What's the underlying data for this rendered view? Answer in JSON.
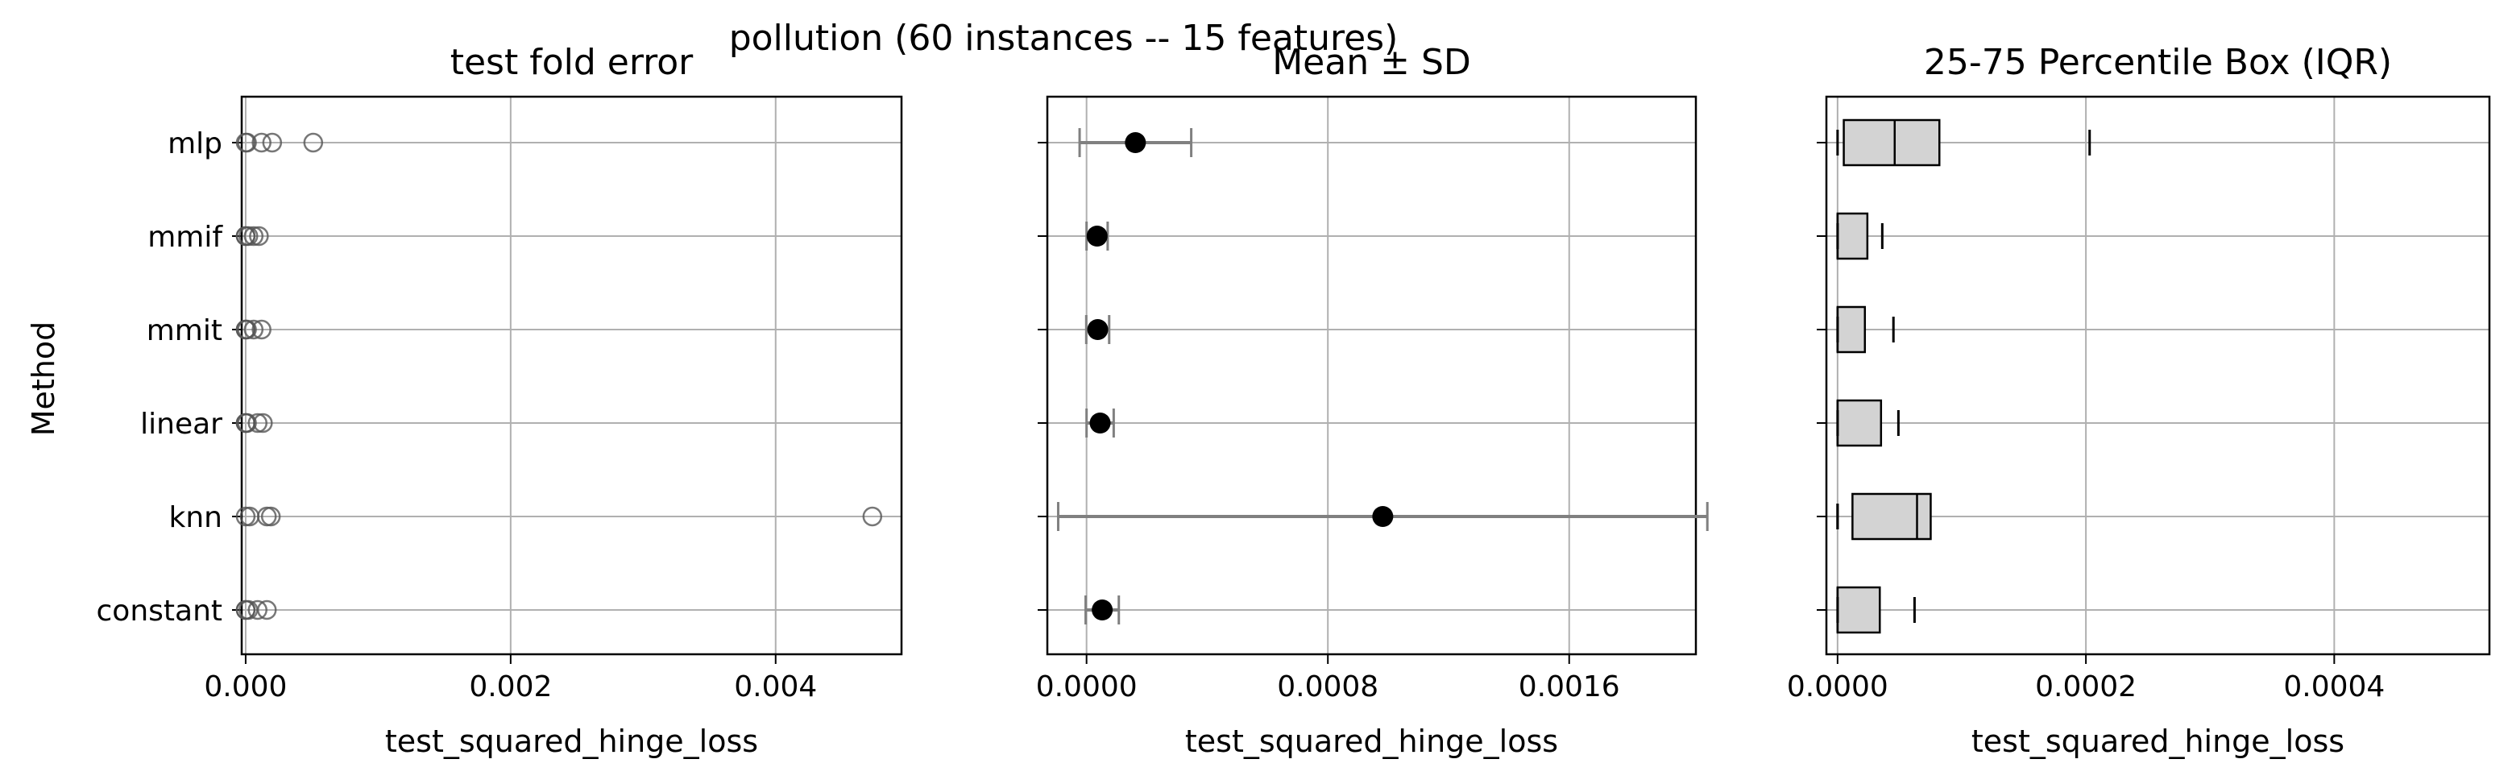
{
  "figure": {
    "suptitle": "pollution (60 instances -- 15 features)",
    "methods": [
      "mlp",
      "mmif",
      "mmit",
      "linear",
      "knn",
      "constant"
    ],
    "ylabel": "Method"
  },
  "chart_data": [
    {
      "type": "scatter",
      "title": "test fold error",
      "xlabel": "test_squared_hinge_loss",
      "ylabel": "Method",
      "xlim": [
        -3e-05,
        0.00495
      ],
      "xticks": [
        0.0,
        0.002,
        0.004
      ],
      "xtick_labels": [
        "0.000",
        "0.002",
        "0.004"
      ],
      "grid": true,
      "marker": "open circle",
      "categories": [
        "mlp",
        "mmif",
        "mmit",
        "linear",
        "knn",
        "constant"
      ],
      "points": {
        "mlp": [
          0.0,
          1e-05,
          0.00012,
          0.0002,
          0.00051
        ],
        "mmif": [
          0.0,
          0.0,
          2e-05,
          6e-05,
          0.0001
        ],
        "mmit": [
          0.0,
          0.0,
          1e-05,
          6e-05,
          0.00012
        ],
        "linear": [
          0.0,
          0.0,
          1e-05,
          9e-05,
          0.00013
        ],
        "knn": [
          0.0,
          3e-05,
          0.00016,
          0.00019,
          0.00473
        ],
        "constant": [
          0.0,
          0.0,
          2e-05,
          9e-05,
          0.00016
        ]
      }
    },
    {
      "type": "errorbar",
      "title": "Mean ± SD",
      "xlabel": "test_squared_hinge_loss",
      "xlim": [
        -0.00013,
        0.00202
      ],
      "xticks": [
        0.0,
        0.0008,
        0.0016
      ],
      "xtick_labels": [
        "0.0000",
        "0.0008",
        "0.0016"
      ],
      "grid": true,
      "categories": [
        "mlp",
        "mmif",
        "mmit",
        "linear",
        "knn",
        "constant"
      ],
      "mean": [
        0.000162,
        3.5e-05,
        3.7e-05,
        4.5e-05,
        0.000982,
        5.2e-05
      ],
      "sd": [
        0.000185,
        3.5e-05,
        3.8e-05,
        4.5e-05,
        0.001076,
        5.5e-05
      ]
    },
    {
      "type": "box",
      "title": "25-75 Percentile Box (IQR)",
      "xlabel": "test_squared_hinge_loss",
      "xlim": [
        -9e-06,
        0.000525
      ],
      "xticks": [
        0.0,
        0.0002,
        0.0004
      ],
      "xtick_labels": [
        "0.0000",
        "0.0002",
        "0.0004"
      ],
      "grid": true,
      "categories": [
        "mlp",
        "mmif",
        "mmit",
        "linear",
        "knn",
        "constant"
      ],
      "q1": [
        5e-06,
        0.0,
        0.0,
        0.0,
        1.2e-05,
        0.0
      ],
      "median": [
        4.6e-05,
        0.0,
        0.0,
        0.0,
        6.4e-05,
        0.0
      ],
      "q3": [
        8.2e-05,
        2.4e-05,
        2.2e-05,
        3.5e-05,
        7.5e-05,
        3.4e-05
      ],
      "whisker_low": [
        0.0,
        0.0,
        0.0,
        0.0,
        0.0,
        0.0
      ],
      "whisker_high": [
        0.000203,
        3.6e-05,
        4.5e-05,
        4.9e-05,
        0.0,
        6.2e-05
      ]
    }
  ]
}
